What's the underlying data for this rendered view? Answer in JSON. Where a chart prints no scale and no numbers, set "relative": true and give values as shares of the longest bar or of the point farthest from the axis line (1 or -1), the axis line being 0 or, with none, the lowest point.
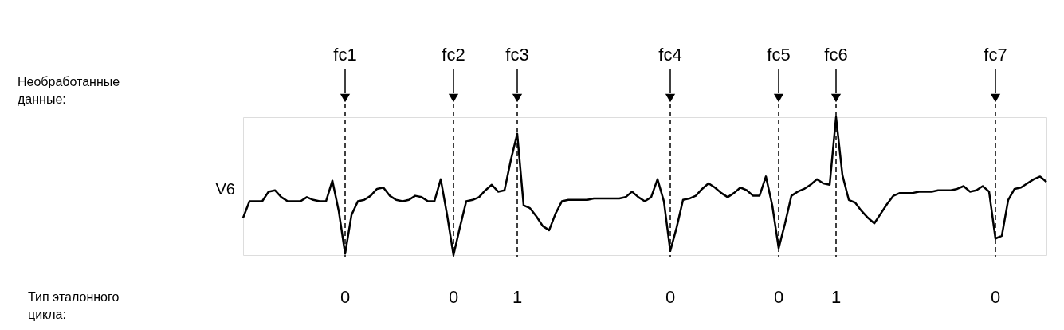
{
  "chart_data": {
    "type": "line",
    "relative": true,
    "grid": "x",
    "legend": false,
    "marker": "none",
    "line_style": "solid",
    "categories": [
      null,
      null,
      null,
      null,
      null,
      null,
      null,
      null,
      null,
      null,
      null,
      null,
      null,
      null,
      null,
      null,
      "fc1",
      null,
      null,
      null,
      null,
      null,
      null,
      null,
      null,
      null,
      null,
      null,
      null,
      null,
      null,
      null,
      null,
      "fc2",
      null,
      null,
      null,
      null,
      null,
      null,
      null,
      null,
      null,
      "fc3",
      null,
      null,
      null,
      null,
      null,
      null,
      null,
      null,
      null,
      null,
      null,
      null,
      null,
      null,
      null,
      null,
      null,
      null,
      null,
      null,
      null,
      null,
      null,
      "fc4",
      null,
      null,
      null,
      null,
      null,
      null,
      null,
      null,
      null,
      null,
      null,
      null,
      null,
      null,
      null,
      null,
      "fc5",
      null,
      null,
      null,
      null,
      null,
      null,
      null,
      null,
      "fc6",
      null,
      null,
      null,
      null,
      null,
      null,
      null,
      null,
      null,
      null,
      null,
      null,
      null,
      null,
      null,
      null,
      null,
      null,
      null,
      null,
      null,
      null,
      null,
      null,
      "fc7",
      null,
      null,
      null,
      null,
      null,
      null,
      null,
      null
    ],
    "series": [
      {
        "name": "V6",
        "color": "#000000",
        "values": [
          0.27,
          0.39,
          0.39,
          0.39,
          0.46,
          0.47,
          0.42,
          0.39,
          0.39,
          0.39,
          0.42,
          0.4,
          0.39,
          0.39,
          0.54,
          0.32,
          0.01,
          0.29,
          0.39,
          0.4,
          0.43,
          0.48,
          0.49,
          0.43,
          0.4,
          0.39,
          0.4,
          0.43,
          0.42,
          0.39,
          0.39,
          0.55,
          0.29,
          0.0,
          0.2,
          0.39,
          0.4,
          0.42,
          0.47,
          0.51,
          0.46,
          0.47,
          0.69,
          0.88,
          0.36,
          0.34,
          0.28,
          0.21,
          0.18,
          0.3,
          0.39,
          0.4,
          0.4,
          0.4,
          0.4,
          0.41,
          0.41,
          0.41,
          0.41,
          0.41,
          0.42,
          0.46,
          0.42,
          0.39,
          0.42,
          0.55,
          0.39,
          0.03,
          0.2,
          0.4,
          0.41,
          0.43,
          0.48,
          0.52,
          0.49,
          0.45,
          0.42,
          0.45,
          0.49,
          0.47,
          0.43,
          0.43,
          0.57,
          0.36,
          0.05,
          0.23,
          0.43,
          0.46,
          0.48,
          0.51,
          0.55,
          0.52,
          0.51,
          1.0,
          0.58,
          0.4,
          0.38,
          0.32,
          0.27,
          0.23,
          0.3,
          0.37,
          0.43,
          0.45,
          0.45,
          0.45,
          0.46,
          0.46,
          0.46,
          0.47,
          0.47,
          0.47,
          0.48,
          0.5,
          0.46,
          0.47,
          0.5,
          0.46,
          0.12,
          0.14,
          0.4,
          0.48,
          0.49,
          0.52,
          0.55,
          0.57,
          0.53
        ]
      }
    ],
    "annotations": [
      "Необработанные данные:",
      "Тип эталонного цикла:",
      "0",
      "0",
      "1",
      "0",
      "0",
      "1",
      "0"
    ]
  }
}
